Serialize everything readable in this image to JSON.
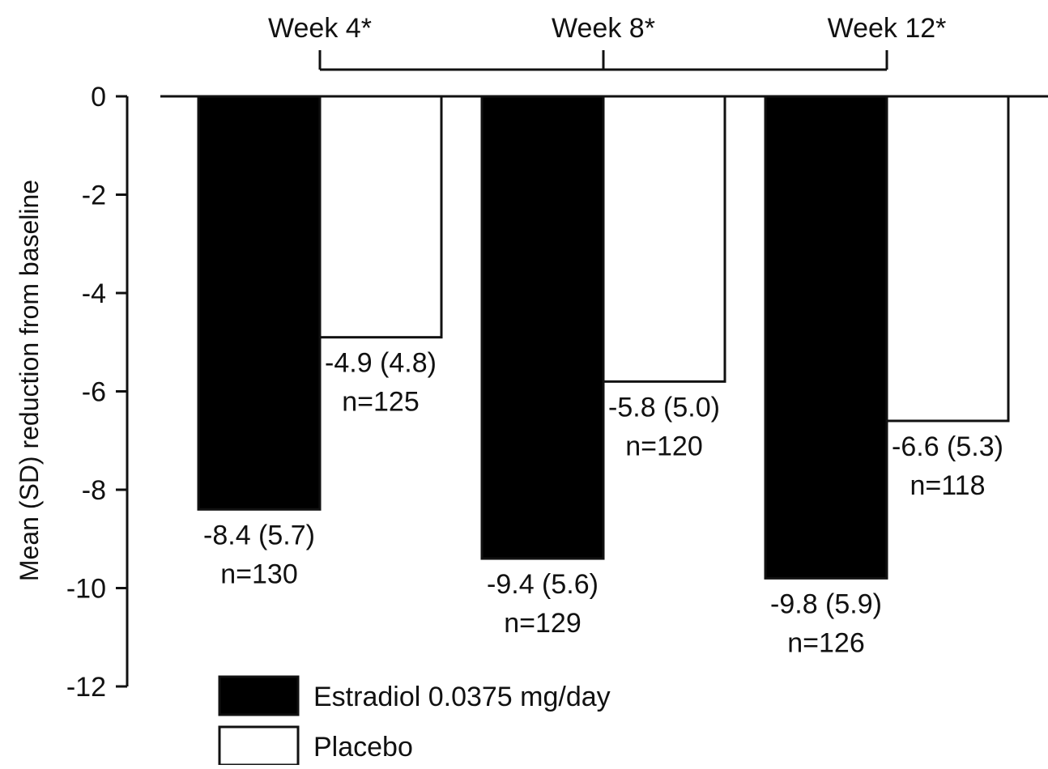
{
  "chart_data": {
    "type": "bar",
    "title": "",
    "xlabel": "",
    "ylabel": "Mean (SD) reduction from baseline",
    "ylim": [
      -12,
      0
    ],
    "yticks": [
      0,
      -2,
      -4,
      -6,
      -8,
      -10,
      -12
    ],
    "ytick_labels": [
      "0",
      "-2",
      "-4",
      "-6",
      "-8",
      "-10",
      "-12"
    ],
    "categories": [
      "Week 4*",
      "Week 8*",
      "Week 12*"
    ],
    "series": [
      {
        "name": "Estradiol 0.0375 mg/day",
        "color": "#000000",
        "values": [
          -8.4,
          -9.4,
          -9.8
        ],
        "labels": [
          "-8.4 (5.7)",
          "-9.4 (5.6)",
          "-9.8 (5.9)"
        ],
        "n_labels": [
          "n=130",
          "n=129",
          "n=126"
        ]
      },
      {
        "name": "Placebo",
        "color": "#ffffff",
        "values": [
          -4.9,
          -5.8,
          -6.6
        ],
        "labels": [
          "-4.9 (4.8)",
          "-5.8 (5.0)",
          "-6.6 (5.3)"
        ],
        "n_labels": [
          "n=125",
          "n=120",
          "n=118"
        ]
      }
    ],
    "legend_position": "bottom-left",
    "grid": false
  }
}
